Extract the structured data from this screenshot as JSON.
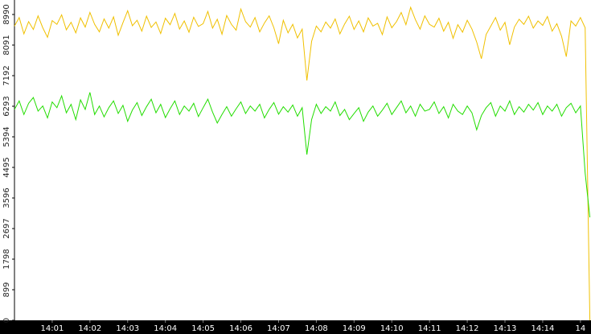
{
  "chart_data": {
    "type": "line",
    "x": [
      840,
      840.125,
      840.25,
      840.375,
      840.5,
      840.625,
      840.75,
      840.875,
      841,
      841.125,
      841.25,
      841.375,
      841.5,
      841.625,
      841.75,
      841.875,
      842,
      842.125,
      842.25,
      842.375,
      842.5,
      842.625,
      842.75,
      842.875,
      843,
      843.125,
      843.25,
      843.375,
      843.5,
      843.625,
      843.75,
      843.875,
      844,
      844.125,
      844.25,
      844.375,
      844.5,
      844.625,
      844.75,
      844.875,
      845,
      845.125,
      845.25,
      845.375,
      845.5,
      845.625,
      845.75,
      845.875,
      846,
      846.125,
      846.25,
      846.375,
      846.5,
      846.625,
      846.75,
      846.875,
      847,
      847.125,
      847.25,
      847.375,
      847.5,
      847.625,
      847.75,
      847.875,
      848,
      848.125,
      848.25,
      848.375,
      848.5,
      848.625,
      848.75,
      848.875,
      849,
      849.125,
      849.25,
      849.375,
      849.5,
      849.625,
      849.75,
      849.875,
      850,
      850.125,
      850.25,
      850.375,
      850.5,
      850.625,
      850.75,
      850.875,
      851,
      851.125,
      851.25,
      851.375,
      851.5,
      851.625,
      851.75,
      851.875,
      852,
      852.125,
      852.25,
      852.375,
      852.5,
      852.625,
      852.75,
      852.875,
      853,
      853.125,
      853.25,
      853.375,
      853.5,
      853.625,
      853.75,
      853.875,
      854,
      854.125,
      854.25,
      854.375,
      854.5,
      854.625,
      854.75,
      854.875,
      855,
      855.125,
      855.25
    ],
    "series": [
      {
        "color": "#f0c000",
        "values": [
          8650,
          8900,
          8420,
          8780,
          8550,
          8950,
          8600,
          8320,
          8810,
          8700,
          8980,
          8540,
          8760,
          8450,
          8890,
          8620,
          9050,
          8700,
          8480,
          8860,
          8590,
          8920,
          8380,
          8750,
          9100,
          8660,
          8820,
          8500,
          8940,
          8610,
          8770,
          8430,
          8880,
          8690,
          9020,
          8560,
          8800,
          8470,
          8910,
          8640,
          8720,
          9080,
          8590,
          8850,
          8410,
          8960,
          8700,
          8530,
          9150,
          8780,
          8620,
          8900,
          8480,
          8740,
          8950,
          8600,
          8130,
          8820,
          8450,
          8700,
          8300,
          8560,
          7050,
          8200,
          8650,
          8480,
          8770,
          8590,
          8860,
          8420,
          8710,
          8940,
          8550,
          8800,
          8480,
          8890,
          8650,
          8730,
          8400,
          8920,
          8600,
          8780,
          9050,
          8690,
          9200,
          8840,
          8560,
          8950,
          8700,
          8620,
          8880,
          8500,
          8760,
          8290,
          8690,
          8470,
          8820,
          8560,
          8180,
          7690,
          8400,
          8650,
          8900,
          8530,
          8760,
          8100,
          8620,
          8850,
          8700,
          8940,
          8590,
          8800,
          8670,
          8930,
          8500,
          8720,
          8350,
          7750,
          8800,
          8650,
          8900,
          8600,
          0
        ]
      },
      {
        "color": "#22dd00",
        "values": [
          6200,
          6450,
          6050,
          6380,
          6550,
          6150,
          6300,
          5950,
          6420,
          6250,
          6600,
          6100,
          6350,
          5900,
          6480,
          6200,
          6700,
          6050,
          6300,
          5980,
          6250,
          6450,
          6080,
          6320,
          5850,
          6180,
          6400,
          6020,
          6280,
          6500,
          6100,
          6350,
          5960,
          6220,
          6450,
          6050,
          6300,
          6150,
          6380,
          5990,
          6250,
          6500,
          6120,
          5800,
          6050,
          6280,
          6000,
          6220,
          6420,
          6080,
          6300,
          6150,
          6350,
          5950,
          6200,
          6400,
          6060,
          6280,
          6120,
          6330,
          6000,
          6250,
          4873,
          5900,
          6350,
          6080,
          6280,
          6150,
          6420,
          6020,
          6200,
          5900,
          6080,
          6250,
          5850,
          6120,
          6300,
          6000,
          6180,
          6380,
          6050,
          6250,
          6450,
          6100,
          6300,
          6000,
          6350,
          6150,
          6200,
          6420,
          6080,
          6280,
          5950,
          6350,
          6150,
          6050,
          6300,
          6100,
          5600,
          6020,
          6250,
          6400,
          6000,
          6300,
          6150,
          6450,
          6050,
          6280,
          6120,
          6350,
          6180,
          6400,
          6050,
          6300,
          6150,
          6350,
          6000,
          6250,
          6380,
          6100,
          6300,
          4330,
          3028
        ]
      }
    ],
    "xlim": [
      840,
      855.28
    ],
    "xticks": [
      {
        "value": 841,
        "label": "14:01"
      },
      {
        "value": 842,
        "label": "14:02"
      },
      {
        "value": 843,
        "label": "14:03"
      },
      {
        "value": 844,
        "label": "14:04"
      },
      {
        "value": 845,
        "label": "14:05"
      },
      {
        "value": 846,
        "label": "14:06"
      },
      {
        "value": 847,
        "label": "14:07"
      },
      {
        "value": 848,
        "label": "14:08"
      },
      {
        "value": 849,
        "label": "14:09"
      },
      {
        "value": 850,
        "label": "14:10"
      },
      {
        "value": 851,
        "label": "14:11"
      },
      {
        "value": 852,
        "label": "14:12"
      },
      {
        "value": 853,
        "label": "14:13"
      },
      {
        "value": 854,
        "label": "14:14"
      },
      {
        "value": 855,
        "label": "14"
      }
    ],
    "ylim": [
      0,
      9416
    ],
    "yticks": [
      0,
      899,
      1798,
      2697,
      3596,
      4495,
      5394,
      6293,
      7192,
      8091,
      8990
    ]
  }
}
